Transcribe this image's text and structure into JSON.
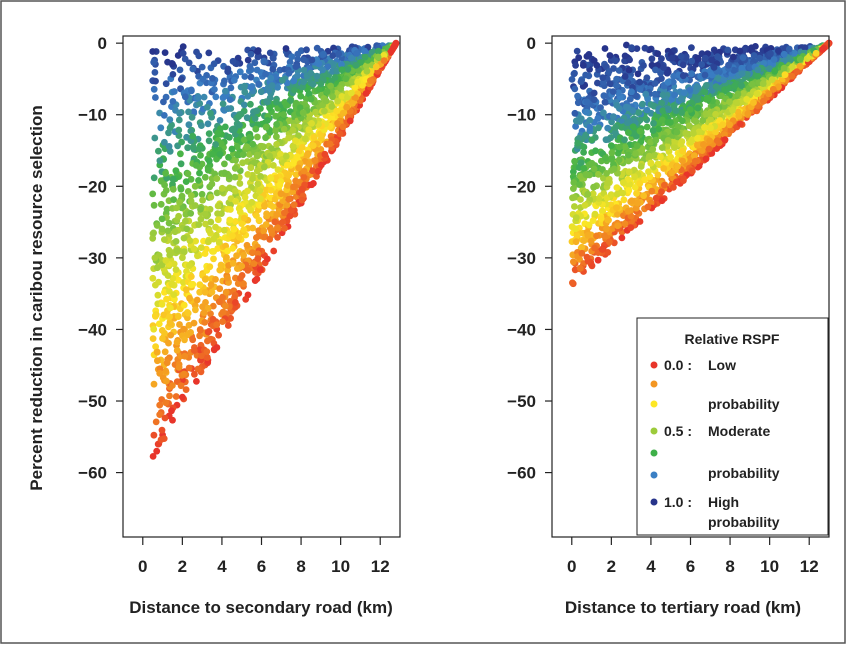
{
  "chart_data": [
    {
      "type": "scatter",
      "ylabel": "Percent reduction in caribou resource selection",
      "xlabel": "Distance to secondary road (km)",
      "xlim": [
        -1,
        13
      ],
      "ylim": [
        -69,
        1
      ],
      "xticks": [
        "0",
        "2",
        "4",
        "6",
        "8",
        "10",
        "12"
      ],
      "yticks": [
        "0",
        "−10",
        "−20",
        "−30",
        "−40",
        "−50",
        "−60"
      ],
      "envelope": {
        "x_start": 0.5,
        "y_bottom_at_start": -58,
        "x_end": 12.8,
        "y_end": 0
      },
      "color_scale": "relative RSPF: red (low) → yellow → green (moderate) → blue (high)",
      "grid": false,
      "legend": false
    },
    {
      "type": "scatter",
      "ylabel": "",
      "xlabel": "Distance to tertiary road (km)",
      "xlim": [
        -1,
        13
      ],
      "ylim": [
        -69,
        1
      ],
      "xticks": [
        "0",
        "2",
        "4",
        "6",
        "8",
        "10",
        "12"
      ],
      "yticks": [
        "0",
        "−10",
        "−20",
        "−30",
        "−40",
        "−50",
        "−60"
      ],
      "envelope": {
        "x_start": 0,
        "y_bottom_at_start": -34,
        "x_end": 13,
        "y_end": 0
      },
      "color_scale": "relative RSPF: red (low) → yellow → green (moderate) → blue (high)",
      "grid": false,
      "legend": true,
      "legend_position": "bottom-right",
      "legend_title": "Relative RSPF",
      "legend_entries": [
        {
          "color": "#e8352a",
          "value": "0.0 :",
          "label_line1": "Low",
          "label_line2": ""
        },
        {
          "color": "#f39621",
          "value": "",
          "label_line1": "",
          "label_line2": "probability"
        },
        {
          "color": "#fde725",
          "value": "",
          "label_line1": "",
          "label_line2": ""
        },
        {
          "color": "#9ccb3b",
          "value": "0.5 :",
          "label_line1": "Moderate",
          "label_line2": ""
        },
        {
          "color": "#3eb049",
          "value": "",
          "label_line1": "",
          "label_line2": "probability"
        },
        {
          "color": "#3a7fc4",
          "value": "",
          "label_line1": "",
          "label_line2": ""
        },
        {
          "color": "#27348b",
          "value": "1.0 :",
          "label_line1": "High",
          "label_line2": "probability"
        }
      ]
    }
  ],
  "palette": [
    "#e8352a",
    "#f39621",
    "#fde725",
    "#9ccb3b",
    "#3eb049",
    "#3a7fc4",
    "#27348b"
  ]
}
